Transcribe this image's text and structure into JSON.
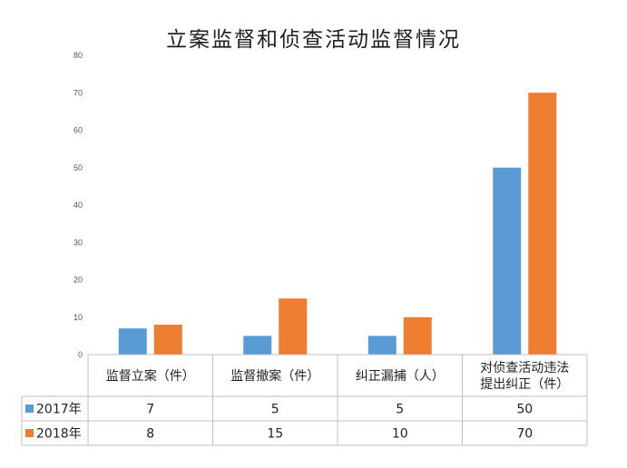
{
  "chart_data": {
    "type": "bar",
    "title": "立案监督和侦查活动监督情况",
    "categories": [
      [
        "监督立案（件）"
      ],
      [
        "监督撤案（件）"
      ],
      [
        "纠正漏捕（人）"
      ],
      [
        "对侦查活动违法",
        "提出纠正（件）"
      ]
    ],
    "series": [
      {
        "name": "2017年",
        "color": "#5b9bd5",
        "values": [
          7,
          5,
          5,
          50
        ]
      },
      {
        "name": "2018年",
        "color": "#ed7d31",
        "values": [
          8,
          15,
          10,
          70
        ]
      }
    ],
    "yticks": [
      "0",
      "10",
      "20",
      "30",
      "40",
      "50",
      "60",
      "70",
      "80"
    ],
    "ylim": [
      0,
      80
    ],
    "grid": false,
    "data_table": true
  }
}
